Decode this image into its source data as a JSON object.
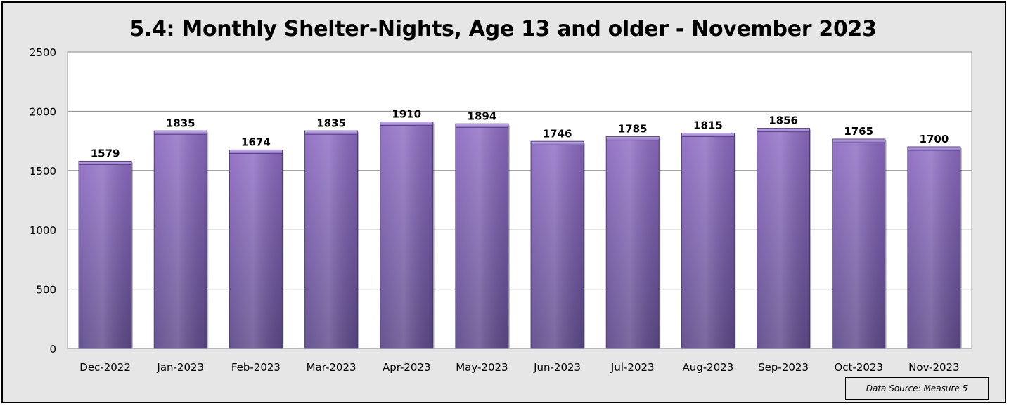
{
  "chart_data": {
    "type": "bar",
    "title": "5.4: Monthly Shelter-Nights, Age 13 and older - November 2023",
    "categories": [
      "Dec-2022",
      "Jan-2023",
      "Feb-2023",
      "Mar-2023",
      "Apr-2023",
      "May-2023",
      "Jun-2023",
      "Jul-2023",
      "Aug-2023",
      "Sep-2023",
      "Oct-2023",
      "Nov-2023"
    ],
    "values": [
      1579,
      1835,
      1674,
      1835,
      1910,
      1894,
      1746,
      1785,
      1815,
      1856,
      1765,
      1700
    ],
    "ylim": [
      0,
      2500
    ],
    "yticks": [
      0,
      500,
      1000,
      1500,
      2000,
      2500
    ],
    "data_labels": true,
    "grid": true,
    "legend": "none",
    "bar_color": "#8e6cc0",
    "source_note": "Data Source: Measure 5"
  }
}
